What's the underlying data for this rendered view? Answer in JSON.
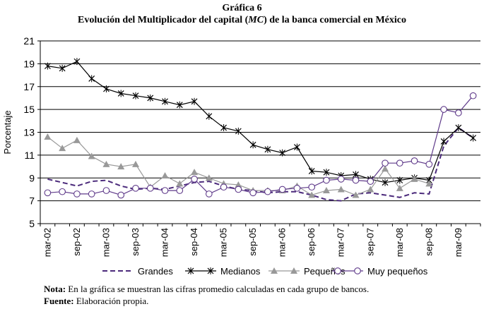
{
  "figure": {
    "label": "Gráfica 6",
    "title_prefix": "Evolución del Multiplicador del capital (",
    "title_abbrev": "MC",
    "title_suffix": ") de la banca comercial en México"
  },
  "notes": {
    "note_label": "Nota:",
    "note_text": "En la gráfica se muestran las cifras promedio calculadas en cada grupo de bancos.",
    "source_label": "Fuente:",
    "source_text": "Elaboración propia."
  },
  "chart_data": {
    "type": "line",
    "title": "Evolución del Multiplicador del capital (MC) de la banca comercial en México",
    "xlabel": "",
    "ylabel": "Porcentaje",
    "ylim": [
      5,
      21
    ],
    "yticks": [
      5,
      7,
      9,
      11,
      13,
      15,
      17,
      19,
      21
    ],
    "grid": "horizontal",
    "legend_position": "bottom",
    "x_tick_labels": [
      "mar-02",
      "sep-02",
      "mar-03",
      "sep-03",
      "mar-04",
      "sep-04",
      "mar-05",
      "sep-05",
      "mar-06",
      "sep-06",
      "mar-07",
      "sep-07",
      "mar-08",
      "sep-08",
      "mar-09"
    ],
    "x_tick_index": [
      0,
      2,
      4,
      6,
      8,
      10,
      12,
      14,
      16,
      18,
      20,
      22,
      24,
      26,
      28
    ],
    "n_points": 30,
    "series": [
      {
        "name": "Grandes",
        "color": "#4b2a7b",
        "style": "dashed",
        "marker": "none",
        "values": [
          8.9,
          8.6,
          8.3,
          8.7,
          8.8,
          8.3,
          8.0,
          8.1,
          8.0,
          8.3,
          8.6,
          8.7,
          8.3,
          8.0,
          7.9,
          7.7,
          7.8,
          7.8,
          7.5,
          7.1,
          7.0,
          7.6,
          7.7,
          7.5,
          7.3,
          7.7,
          7.6,
          11.8,
          13.4,
          12.5
        ]
      },
      {
        "name": "Medianos",
        "color": "#000000",
        "style": "solid",
        "marker": "x",
        "values": [
          18.8,
          18.6,
          19.2,
          17.7,
          16.8,
          16.4,
          16.2,
          16.0,
          15.7,
          15.4,
          15.7,
          14.4,
          13.4,
          13.1,
          11.9,
          11.5,
          11.2,
          11.7,
          9.6,
          9.5,
          9.2,
          9.3,
          8.9,
          8.6,
          8.8,
          9.0,
          8.8,
          12.2,
          13.4,
          12.5
        ]
      },
      {
        "name": "Pequeños",
        "color": "#999999",
        "style": "solid",
        "marker": "triangle",
        "values": [
          12.6,
          11.6,
          12.3,
          10.9,
          10.2,
          10.0,
          10.2,
          8.2,
          9.2,
          8.5,
          9.5,
          9.0,
          8.5,
          8.4,
          7.9,
          7.9,
          7.9,
          8.3,
          7.5,
          7.9,
          8.0,
          7.5,
          8.0,
          9.8,
          8.1,
          8.9,
          8.5,
          null,
          null,
          null
        ]
      },
      {
        "name": "Muy pequeños",
        "color": "#5f3a8a",
        "style": "solid",
        "marker": "circle",
        "values": [
          7.7,
          7.8,
          7.6,
          7.6,
          7.9,
          7.5,
          8.1,
          8.1,
          7.9,
          7.9,
          8.9,
          7.6,
          8.2,
          8.0,
          7.7,
          7.8,
          8.0,
          8.1,
          8.2,
          8.8,
          8.9,
          8.8,
          8.7,
          10.3,
          10.3,
          10.5,
          10.2,
          15.0,
          14.7,
          16.2
        ]
      }
    ]
  }
}
